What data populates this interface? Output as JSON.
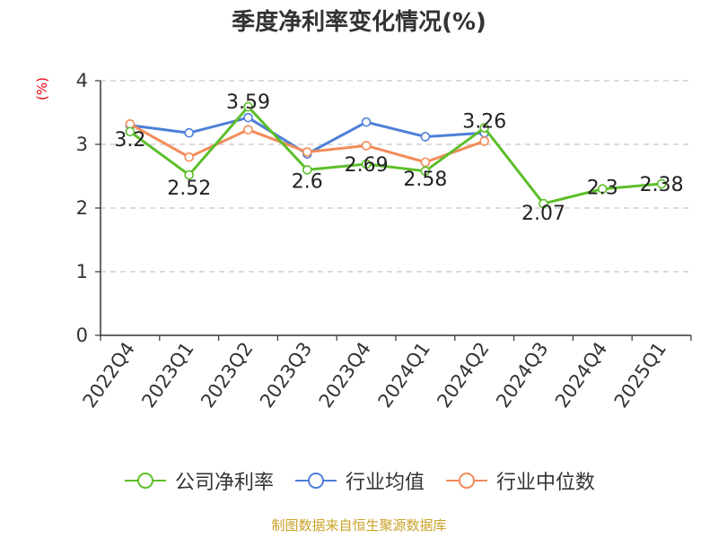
{
  "chart_data": {
    "type": "line",
    "title": "季度净利率变化情况(%)",
    "ylabel": "(%)",
    "xlabel": "",
    "ylim": [
      0,
      4
    ],
    "yticks": [
      "0",
      "1",
      "2",
      "3",
      "4"
    ],
    "grid": true,
    "legend_position": "bottom",
    "categories": [
      "2022Q4",
      "2023Q1",
      "2023Q2",
      "2023Q3",
      "2023Q4",
      "2024Q1",
      "2024Q2",
      "2024Q3",
      "2024Q4",
      "2025Q1"
    ],
    "series": [
      {
        "name": "公司净利率",
        "color": "#5cbf2a",
        "values": [
          3.2,
          2.52,
          3.59,
          2.6,
          2.69,
          2.58,
          3.26,
          2.07,
          2.3,
          2.38
        ],
        "labels": [
          "3.2",
          "2.52",
          "3.59",
          "2.6",
          "2.69",
          "2.58",
          "3.26",
          "2.07",
          "2.3",
          "2.38"
        ]
      },
      {
        "name": "行业均值",
        "color": "#4e7fd8",
        "values": [
          3.3,
          3.18,
          3.42,
          2.85,
          3.35,
          3.12,
          3.18,
          null,
          null,
          null
        ]
      },
      {
        "name": "行业中位数",
        "color": "#f28c5a",
        "values": [
          3.32,
          2.8,
          3.23,
          2.88,
          2.98,
          2.72,
          3.05,
          null,
          null,
          null
        ]
      }
    ]
  },
  "footer": "制图数据来自恒生聚源数据库"
}
